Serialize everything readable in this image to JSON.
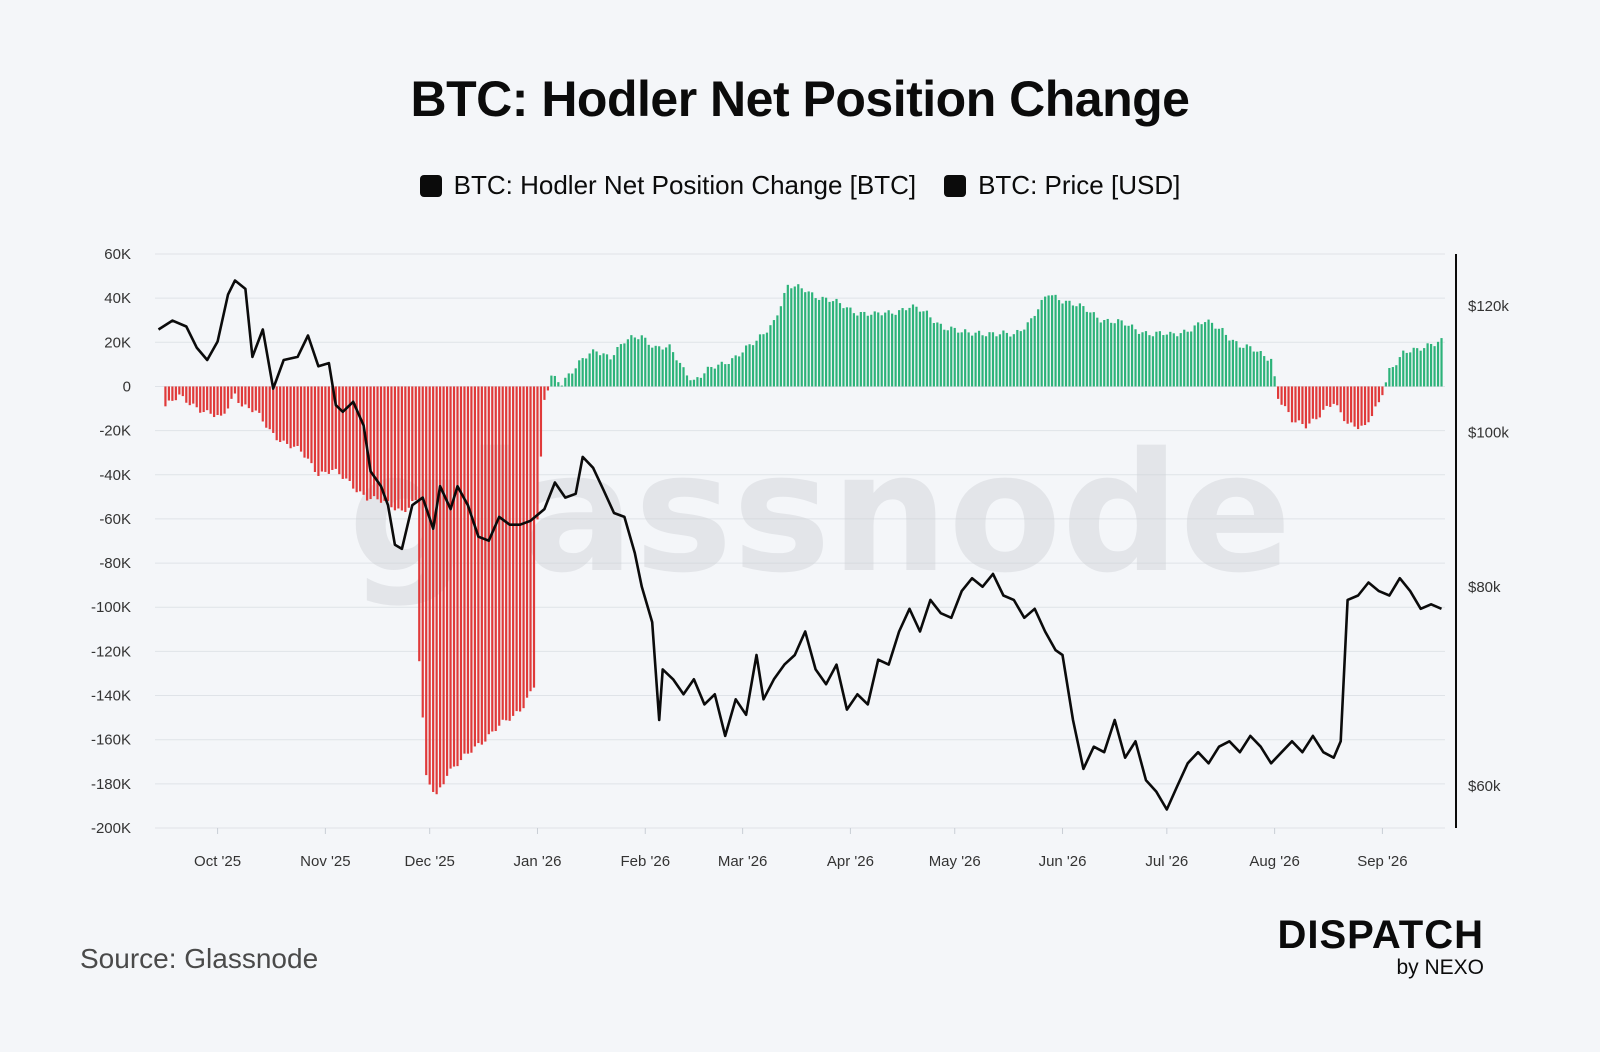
{
  "header": {
    "title": "BTC: Hodler Net Position Change"
  },
  "legend": {
    "items": [
      {
        "label": "BTC: Hodler Net Position Change [BTC]",
        "color": "#0b0b0b"
      },
      {
        "label": "BTC: Price [USD]",
        "color": "#0b0b0b"
      }
    ]
  },
  "footer": {
    "source": "Source: Glassnode",
    "brand": "DISPATCH",
    "brand_sub": "by NEXO"
  },
  "watermark": "glassnode",
  "chart_data": {
    "type": "bar",
    "x_tick_labels": [
      "Oct '25",
      "Nov '25",
      "Dec '25",
      "Jan '26",
      "Feb '26",
      "Mar '26",
      "Apr '26",
      "May '26",
      "Jun '26",
      "Jul '26",
      "Aug '26",
      "Sep '26"
    ],
    "left_axis": {
      "ticks": [
        60000,
        40000,
        20000,
        0,
        -20000,
        -40000,
        -60000,
        -80000,
        -100000,
        -120000,
        -140000,
        -160000,
        -180000,
        -200000
      ],
      "tick_labels": [
        "60K",
        "40K",
        "20K",
        "0",
        "-20K",
        "-40K",
        "-60K",
        "-80K",
        "-100K",
        "-120K",
        "-140K",
        "-160K",
        "-180K",
        "-200K"
      ],
      "range": [
        -200000,
        60000
      ]
    },
    "right_axis": {
      "ticks": [
        120000,
        100000,
        80000,
        60000
      ],
      "tick_labels": [
        "$120k",
        "$100k",
        "$80k",
        "$60k"
      ],
      "log_scale": true
    },
    "positive_color": "#2db37a",
    "negative_color": "#e03a3a",
    "price_color": "#0b0b0b",
    "grid": true,
    "series": [
      {
        "name": "BTC: Hodler Net Position Change [BTC]",
        "type": "bar",
        "points": [
          [
            "2025-09-16",
            -9000
          ],
          [
            "2025-09-20",
            -5000
          ],
          [
            "2025-09-24",
            -8000
          ],
          [
            "2025-09-28",
            -12000
          ],
          [
            "2025-10-02",
            -15000
          ],
          [
            "2025-10-06",
            -3000
          ],
          [
            "2025-10-08",
            -8000
          ],
          [
            "2025-10-12",
            -12000
          ],
          [
            "2025-10-16",
            -20000
          ],
          [
            "2025-10-20",
            -25000
          ],
          [
            "2025-10-25",
            -30000
          ],
          [
            "2025-10-30",
            -39000
          ],
          [
            "2025-11-03",
            -38000
          ],
          [
            "2025-11-08",
            -44000
          ],
          [
            "2025-11-13",
            -50000
          ],
          [
            "2025-11-18",
            -53000
          ],
          [
            "2025-11-23",
            -56000
          ],
          [
            "2025-11-27",
            -52000
          ],
          [
            "2025-11-28",
            -124000
          ],
          [
            "2025-11-30",
            -178000
          ],
          [
            "2025-12-03",
            -185000
          ],
          [
            "2025-12-06",
            -175000
          ],
          [
            "2025-12-10",
            -170000
          ],
          [
            "2025-12-15",
            -162000
          ],
          [
            "2025-12-20",
            -155000
          ],
          [
            "2025-12-25",
            -150000
          ],
          [
            "2025-12-28",
            -144000
          ],
          [
            "2025-12-31",
            -135000
          ],
          [
            "2026-01-01",
            -60000
          ],
          [
            "2026-01-03",
            -7000
          ],
          [
            "2026-01-05",
            4000
          ],
          [
            "2026-01-08",
            2000
          ],
          [
            "2026-01-10",
            6000
          ],
          [
            "2026-01-14",
            12000
          ],
          [
            "2026-01-18",
            16000
          ],
          [
            "2026-01-22",
            14000
          ],
          [
            "2026-01-26",
            20000
          ],
          [
            "2026-01-31",
            23000
          ],
          [
            "2026-02-04",
            18000
          ],
          [
            "2026-02-08",
            17000
          ],
          [
            "2026-02-12",
            8000
          ],
          [
            "2026-02-15",
            3000
          ],
          [
            "2026-02-19",
            7000
          ],
          [
            "2026-02-23",
            10000
          ],
          [
            "2026-02-26",
            13000
          ],
          [
            "2026-03-01",
            16000
          ],
          [
            "2026-03-05",
            20000
          ],
          [
            "2026-03-10",
            30000
          ],
          [
            "2026-03-14",
            45000
          ],
          [
            "2026-03-19",
            44000
          ],
          [
            "2026-03-24",
            40000
          ],
          [
            "2026-03-29",
            37000
          ],
          [
            "2026-04-03",
            34000
          ],
          [
            "2026-04-08",
            32000
          ],
          [
            "2026-04-13",
            34000
          ],
          [
            "2026-04-18",
            36000
          ],
          [
            "2026-04-23",
            33000
          ],
          [
            "2026-04-28",
            27000
          ],
          [
            "2026-05-03",
            24000
          ],
          [
            "2026-05-08",
            25000
          ],
          [
            "2026-05-13",
            23000
          ],
          [
            "2026-05-18",
            24000
          ],
          [
            "2026-05-23",
            30000
          ],
          [
            "2026-05-28",
            42000
          ],
          [
            "2026-06-02",
            39000
          ],
          [
            "2026-06-07",
            35000
          ],
          [
            "2026-06-12",
            31000
          ],
          [
            "2026-06-17",
            29000
          ],
          [
            "2026-06-22",
            26000
          ],
          [
            "2026-06-27",
            24000
          ],
          [
            "2026-07-02",
            23000
          ],
          [
            "2026-07-07",
            26000
          ],
          [
            "2026-07-12",
            29000
          ],
          [
            "2026-07-17",
            26000
          ],
          [
            "2026-07-22",
            18000
          ],
          [
            "2026-07-27",
            16000
          ],
          [
            "2026-07-31",
            13000
          ],
          [
            "2026-08-02",
            -5000
          ],
          [
            "2026-08-06",
            -16000
          ],
          [
            "2026-08-10",
            -17000
          ],
          [
            "2026-08-14",
            -13000
          ],
          [
            "2026-08-18",
            -8000
          ],
          [
            "2026-08-22",
            -16000
          ],
          [
            "2026-08-27",
            -19000
          ],
          [
            "2026-08-31",
            -8000
          ],
          [
            "2026-09-03",
            8000
          ],
          [
            "2026-09-07",
            15000
          ],
          [
            "2026-09-11",
            16000
          ],
          [
            "2026-09-15",
            20000
          ],
          [
            "2026-09-18",
            21000
          ]
        ]
      },
      {
        "name": "BTC: Price [USD]",
        "type": "line",
        "axis": "right",
        "points": [
          [
            "2025-09-14",
            116000
          ],
          [
            "2025-09-18",
            117500
          ],
          [
            "2025-09-22",
            116500
          ],
          [
            "2025-09-25",
            113000
          ],
          [
            "2025-09-28",
            111000
          ],
          [
            "2025-10-01",
            114000
          ],
          [
            "2025-10-04",
            122000
          ],
          [
            "2025-10-06",
            124500
          ],
          [
            "2025-10-09",
            123000
          ],
          [
            "2025-10-11",
            111500
          ],
          [
            "2025-10-14",
            116000
          ],
          [
            "2025-10-17",
            106500
          ],
          [
            "2025-10-20",
            111000
          ],
          [
            "2025-10-24",
            111500
          ],
          [
            "2025-10-27",
            115000
          ],
          [
            "2025-10-30",
            110000
          ],
          [
            "2025-11-02",
            110500
          ],
          [
            "2025-11-04",
            104000
          ],
          [
            "2025-11-06",
            103000
          ],
          [
            "2025-11-09",
            104500
          ],
          [
            "2025-11-12",
            101000
          ],
          [
            "2025-11-14",
            94500
          ],
          [
            "2025-11-17",
            92500
          ],
          [
            "2025-11-19",
            90000
          ],
          [
            "2025-11-21",
            85000
          ],
          [
            "2025-11-23",
            84500
          ],
          [
            "2025-11-26",
            90000
          ],
          [
            "2025-11-29",
            91000
          ],
          [
            "2025-12-02",
            87000
          ],
          [
            "2025-12-04",
            92500
          ],
          [
            "2025-12-07",
            89500
          ],
          [
            "2025-12-09",
            92500
          ],
          [
            "2025-12-12",
            90000
          ],
          [
            "2025-12-15",
            86000
          ],
          [
            "2025-12-18",
            85500
          ],
          [
            "2025-12-21",
            88500
          ],
          [
            "2025-12-24",
            87500
          ],
          [
            "2025-12-27",
            87500
          ],
          [
            "2025-12-30",
            88000
          ],
          [
            "2026-01-03",
            89500
          ],
          [
            "2026-01-06",
            93000
          ],
          [
            "2026-01-09",
            91000
          ],
          [
            "2026-01-12",
            91500
          ],
          [
            "2026-01-14",
            96500
          ],
          [
            "2026-01-17",
            95000
          ],
          [
            "2026-01-20",
            92000
          ],
          [
            "2026-01-23",
            89000
          ],
          [
            "2026-01-26",
            88500
          ],
          [
            "2026-01-29",
            84000
          ],
          [
            "2026-01-31",
            80000
          ],
          [
            "2026-02-03",
            76000
          ],
          [
            "2026-02-05",
            66000
          ],
          [
            "2026-02-06",
            71000
          ],
          [
            "2026-02-09",
            70000
          ],
          [
            "2026-02-12",
            68500
          ],
          [
            "2026-02-15",
            70000
          ],
          [
            "2026-02-18",
            67500
          ],
          [
            "2026-02-21",
            68500
          ],
          [
            "2026-02-24",
            64500
          ],
          [
            "2026-02-27",
            68000
          ],
          [
            "2026-03-02",
            66500
          ],
          [
            "2026-03-05",
            72500
          ],
          [
            "2026-03-07",
            68000
          ],
          [
            "2026-03-10",
            70000
          ],
          [
            "2026-03-13",
            71500
          ],
          [
            "2026-03-16",
            72500
          ],
          [
            "2026-03-19",
            75000
          ],
          [
            "2026-03-22",
            71000
          ],
          [
            "2026-03-25",
            69500
          ],
          [
            "2026-03-28",
            71500
          ],
          [
            "2026-03-31",
            67000
          ],
          [
            "2026-04-03",
            68500
          ],
          [
            "2026-04-06",
            67500
          ],
          [
            "2026-04-09",
            72000
          ],
          [
            "2026-04-12",
            71500
          ],
          [
            "2026-04-15",
            75000
          ],
          [
            "2026-04-18",
            77500
          ],
          [
            "2026-04-21",
            75000
          ],
          [
            "2026-04-24",
            78500
          ],
          [
            "2026-04-27",
            77000
          ],
          [
            "2026-04-30",
            76500
          ],
          [
            "2026-05-03",
            79500
          ],
          [
            "2026-05-06",
            81000
          ],
          [
            "2026-05-09",
            80000
          ],
          [
            "2026-05-12",
            81500
          ],
          [
            "2026-05-15",
            79000
          ],
          [
            "2026-05-18",
            78500
          ],
          [
            "2026-05-21",
            76500
          ],
          [
            "2026-05-24",
            77500
          ],
          [
            "2026-05-27",
            75000
          ],
          [
            "2026-05-30",
            73000
          ],
          [
            "2026-06-01",
            72500
          ],
          [
            "2026-06-04",
            66000
          ],
          [
            "2026-06-07",
            61500
          ],
          [
            "2026-06-10",
            63500
          ],
          [
            "2026-06-13",
            63000
          ],
          [
            "2026-06-16",
            66000
          ],
          [
            "2026-06-19",
            62500
          ],
          [
            "2026-06-22",
            64000
          ],
          [
            "2026-06-25",
            60500
          ],
          [
            "2026-06-28",
            59500
          ],
          [
            "2026-07-01",
            58000
          ],
          [
            "2026-07-04",
            60000
          ],
          [
            "2026-07-07",
            62000
          ],
          [
            "2026-07-10",
            63000
          ],
          [
            "2026-07-13",
            62000
          ],
          [
            "2026-07-16",
            63500
          ],
          [
            "2026-07-19",
            64000
          ],
          [
            "2026-07-22",
            63000
          ],
          [
            "2026-07-25",
            64500
          ],
          [
            "2026-07-28",
            63500
          ],
          [
            "2026-07-31",
            62000
          ],
          [
            "2026-08-03",
            63000
          ],
          [
            "2026-08-06",
            64000
          ],
          [
            "2026-08-09",
            63000
          ],
          [
            "2026-08-12",
            64500
          ],
          [
            "2026-08-15",
            63000
          ],
          [
            "2026-08-18",
            62500
          ],
          [
            "2026-08-20",
            64000
          ],
          [
            "2026-08-22",
            78500
          ],
          [
            "2026-08-25",
            79000
          ],
          [
            "2026-08-28",
            80500
          ],
          [
            "2026-08-31",
            79500
          ],
          [
            "2026-09-03",
            79000
          ],
          [
            "2026-09-06",
            81000
          ],
          [
            "2026-09-09",
            79500
          ],
          [
            "2026-09-12",
            77500
          ],
          [
            "2026-09-15",
            78000
          ],
          [
            "2026-09-18",
            77500
          ]
        ]
      }
    ]
  }
}
